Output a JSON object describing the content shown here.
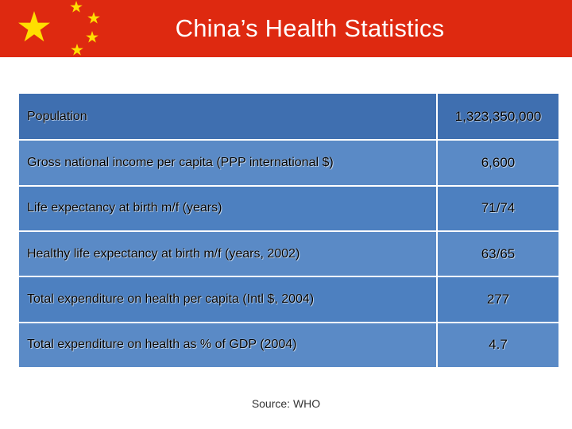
{
  "header": {
    "title": "China’s Health Statistics",
    "banner_color": "#de2910",
    "star_color": "#ffde00"
  },
  "table": {
    "rows": [
      {
        "label": "Population",
        "value": "1,323,350,000"
      },
      {
        "label": "Gross national income per capita (PPP international $)",
        "value": "6,600"
      },
      {
        "label": "Life expectancy at birth m/f (years)",
        "value": "71/74"
      },
      {
        "label": "Healthy life expectancy at birth m/f (years, 2002)",
        "value": "63/65"
      },
      {
        "label": "Total expenditure on health per capita (Intl $, 2004)",
        "value": "277"
      },
      {
        "label": "Total expenditure on health as % of GDP (2004)",
        "value": "4.7"
      }
    ],
    "colors": {
      "first_row": "#3f6fb0",
      "row_a": "#5a8ac6",
      "row_b": "#4d80c0"
    }
  },
  "footer": {
    "source": "Source: WHO"
  }
}
